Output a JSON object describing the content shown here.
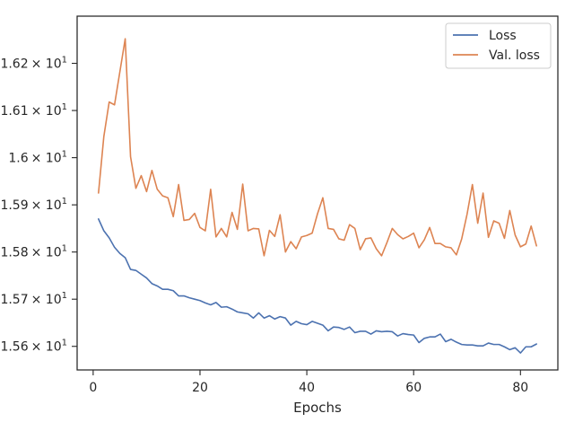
{
  "chart_data": {
    "type": "line",
    "title": "",
    "xlabel": "Epochs",
    "ylabel": "",
    "xlim": [
      -3,
      87
    ],
    "ylim": [
      15.555,
      15.63
    ],
    "grid": false,
    "legend_position": "top-right",
    "x_ticks": [
      {
        "value": 0,
        "label": "0"
      },
      {
        "value": 20,
        "label": "20"
      },
      {
        "value": 40,
        "label": "40"
      },
      {
        "value": 60,
        "label": "60"
      },
      {
        "value": 80,
        "label": "80"
      }
    ],
    "y_ticks": [
      {
        "value": 15.56,
        "mantissa": "1.56",
        "base": "× 10",
        "exp": "1"
      },
      {
        "value": 15.57,
        "mantissa": "1.57",
        "base": "× 10",
        "exp": "1"
      },
      {
        "value": 15.58,
        "mantissa": "1.58",
        "base": "× 10",
        "exp": "1"
      },
      {
        "value": 15.59,
        "mantissa": "1.59",
        "base": "× 10",
        "exp": "1"
      },
      {
        "value": 15.6,
        "mantissa": "1.6",
        "base": "× 10",
        "exp": "1"
      },
      {
        "value": 15.61,
        "mantissa": "1.61",
        "base": "× 10",
        "exp": "1"
      },
      {
        "value": 15.62,
        "mantissa": "1.62",
        "base": "× 10",
        "exp": "1"
      }
    ],
    "x": [
      1,
      2,
      3,
      4,
      5,
      6,
      7,
      8,
      9,
      10,
      11,
      12,
      13,
      14,
      15,
      16,
      17,
      18,
      19,
      20,
      21,
      22,
      23,
      24,
      25,
      26,
      27,
      28,
      29,
      30,
      31,
      32,
      33,
      34,
      35,
      36,
      37,
      38,
      39,
      40,
      41,
      42,
      43,
      44,
      45,
      46,
      47,
      48,
      49,
      50,
      51,
      52,
      53,
      54,
      55,
      56,
      57,
      58,
      59,
      60,
      61,
      62,
      63,
      64,
      65,
      66,
      67,
      68,
      69,
      70,
      71,
      72,
      73,
      74,
      75,
      76,
      77,
      78,
      79,
      80,
      81,
      82,
      83
    ],
    "series": [
      {
        "name": "Loss",
        "color": "#4c72b0",
        "values": [
          15.587,
          15.5845,
          15.583,
          15.581,
          15.5797,
          15.5788,
          15.5763,
          15.5761,
          15.5753,
          15.5745,
          15.5733,
          15.5728,
          15.5721,
          15.5721,
          15.5718,
          15.5707,
          15.5707,
          15.5703,
          15.57,
          15.5697,
          15.5692,
          15.5688,
          15.5693,
          15.5683,
          15.5684,
          15.5679,
          15.5673,
          15.5671,
          15.5669,
          15.566,
          15.5671,
          15.566,
          15.5665,
          15.5658,
          15.5663,
          15.566,
          15.5645,
          15.5653,
          15.5648,
          15.5646,
          15.5653,
          15.5649,
          15.5645,
          15.5633,
          15.5641,
          15.564,
          15.5636,
          15.5641,
          15.5629,
          15.5632,
          15.5632,
          15.5626,
          15.5633,
          15.5631,
          15.5632,
          15.5631,
          15.5622,
          15.5627,
          15.5625,
          15.5624,
          15.5608,
          15.5617,
          15.562,
          15.562,
          15.5626,
          15.561,
          15.5615,
          15.5609,
          15.5604,
          15.5603,
          15.5603,
          15.5601,
          15.5601,
          15.5607,
          15.5604,
          15.5604,
          15.5599,
          15.5593,
          15.5597,
          15.5586,
          15.5599,
          15.5599,
          15.5605
        ]
      },
      {
        "name": "Val. loss",
        "color": "#dd8452",
        "values": [
          15.5925,
          15.6045,
          15.6118,
          15.6112,
          15.6182,
          15.6252,
          15.6002,
          15.5935,
          15.5962,
          15.5928,
          15.5973,
          15.5933,
          15.5919,
          15.5915,
          15.5875,
          15.5943,
          15.5867,
          15.5869,
          15.5882,
          15.5852,
          15.5845,
          15.5933,
          15.5832,
          15.585,
          15.5832,
          15.5884,
          15.5848,
          15.5944,
          15.5845,
          15.585,
          15.5849,
          15.5792,
          15.5846,
          15.5833,
          15.5879,
          15.58,
          15.5822,
          15.5807,
          15.5832,
          15.5835,
          15.584,
          15.5881,
          15.5915,
          15.585,
          15.5848,
          15.5828,
          15.5825,
          15.5858,
          15.585,
          15.5805,
          15.5828,
          15.583,
          15.5807,
          15.5792,
          15.582,
          15.585,
          15.5837,
          15.5828,
          15.5833,
          15.584,
          15.5809,
          15.5826,
          15.5852,
          15.5818,
          15.5818,
          15.5811,
          15.5809,
          15.5794,
          15.5828,
          15.588,
          15.5943,
          15.5861,
          15.5925,
          15.5831,
          15.5866,
          15.5861,
          15.5829,
          15.5888,
          15.5836,
          15.5811,
          15.5817,
          15.5855,
          15.5813
        ]
      }
    ]
  }
}
